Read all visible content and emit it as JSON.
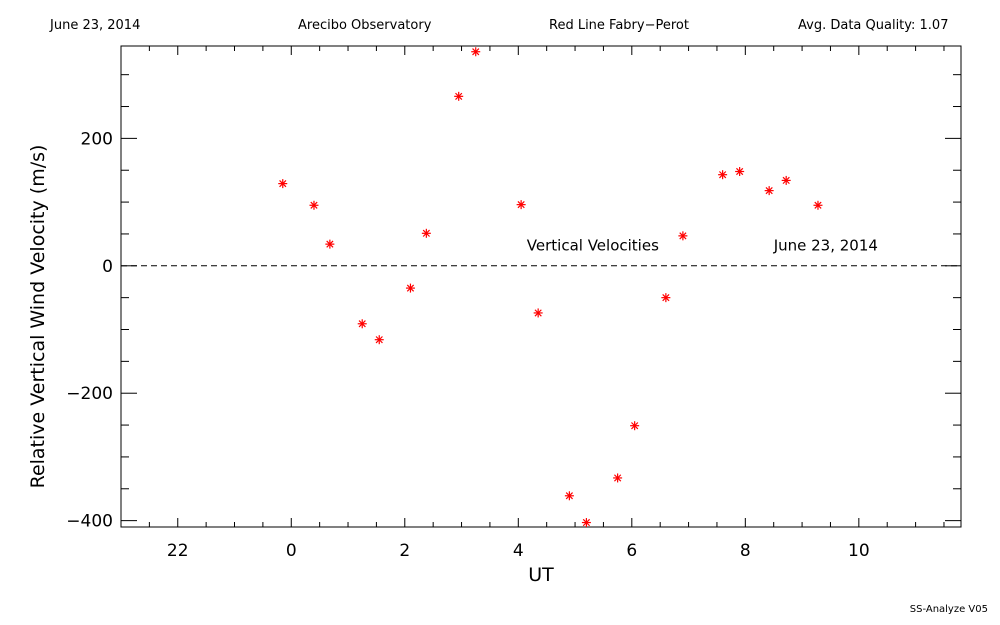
{
  "header": {
    "date": "June 23, 2014",
    "observatory": "Arecibo Observatory",
    "instrument": "Red Line Fabry−Perot",
    "quality": "Avg. Data Quality: 1.07"
  },
  "footer": "SS-Analyze V05",
  "chart_data": {
    "type": "scatter",
    "xlabel": "UT",
    "ylabel": "Relative Vertical Wind Velocity (m/s)",
    "xlim": [
      21.0,
      11.8
    ],
    "ylim": [
      -410,
      345
    ],
    "x_ticks": [
      {
        "value": 22,
        "label": "22"
      },
      {
        "value": 24,
        "label": "0"
      },
      {
        "value": 26,
        "label": "2"
      },
      {
        "value": 28,
        "label": "4"
      },
      {
        "value": 30,
        "label": "6"
      },
      {
        "value": 32,
        "label": "8"
      },
      {
        "value": 34,
        "label": "10"
      }
    ],
    "y_ticks": [
      {
        "value": 200,
        "label": "200"
      },
      {
        "value": 0,
        "label": "0"
      },
      {
        "value": -200,
        "label": "−200"
      },
      {
        "value": -400,
        "label": "−400"
      }
    ],
    "grid": false,
    "marker": "asterisk",
    "marker_color": "#ff0000",
    "zero_line": "dashed",
    "annotations": [
      "Vertical Velocities",
      "June 23, 2014"
    ],
    "series": [
      {
        "points": [
          {
            "x": -0.15,
            "y": 129
          },
          {
            "x": 0.4,
            "y": 95
          },
          {
            "x": 0.68,
            "y": 34
          },
          {
            "x": 1.25,
            "y": -91
          },
          {
            "x": 1.55,
            "y": -116
          },
          {
            "x": 2.1,
            "y": -35
          },
          {
            "x": 2.38,
            "y": 51
          },
          {
            "x": 2.95,
            "y": 266
          },
          {
            "x": 3.25,
            "y": 336
          },
          {
            "x": 4.05,
            "y": 96
          },
          {
            "x": 4.35,
            "y": -74
          },
          {
            "x": 4.9,
            "y": -361
          },
          {
            "x": 5.2,
            "y": -403
          },
          {
            "x": 5.75,
            "y": -333
          },
          {
            "x": 6.05,
            "y": -251
          },
          {
            "x": 6.6,
            "y": -50
          },
          {
            "x": 6.9,
            "y": 47
          },
          {
            "x": 7.6,
            "y": 143
          },
          {
            "x": 7.9,
            "y": 148
          },
          {
            "x": 8.42,
            "y": 118
          },
          {
            "x": 8.72,
            "y": 134
          },
          {
            "x": 9.28,
            "y": 95
          }
        ]
      }
    ]
  }
}
